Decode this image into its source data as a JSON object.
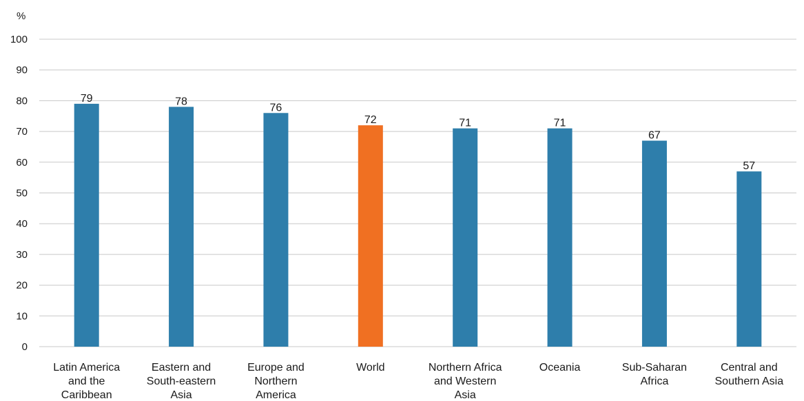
{
  "chart_data": {
    "type": "bar",
    "unit_label": "%",
    "categories": [
      [
        "Latin America",
        "and the",
        "Caribbean"
      ],
      [
        "Eastern and",
        "South-eastern",
        "Asia"
      ],
      [
        "Europe and",
        "Northern",
        "America"
      ],
      [
        "World"
      ],
      [
        "Northern Africa",
        "and Western",
        "Asia"
      ],
      [
        "Oceania"
      ],
      [
        "Sub-Saharan",
        "Africa"
      ],
      [
        "Central and",
        "Southern Asia"
      ]
    ],
    "values": [
      79,
      78,
      76,
      72,
      71,
      71,
      67,
      57
    ],
    "data_labels": [
      "79",
      "78",
      "76",
      "72",
      "71",
      "71",
      "67",
      "57"
    ],
    "highlight_index": 3,
    "colors": {
      "default": "#2e7eab",
      "highlight": "#f07022",
      "grid": "#c8c8c8",
      "text": "#1a1a1a"
    },
    "ylim": [
      0,
      100
    ],
    "yticks": [
      0,
      10,
      20,
      30,
      40,
      50,
      60,
      70,
      80,
      90,
      100
    ],
    "grid": true,
    "legend": "none"
  }
}
